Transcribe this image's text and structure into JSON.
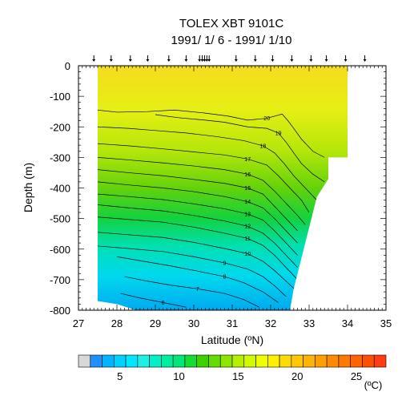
{
  "chart_data": {
    "type": "contour",
    "title": "TOLEX XBT 9101C",
    "subtitle": "1991/ 1/ 6 - 1991/ 1/10",
    "xlabel": "Latitude (ºN)",
    "ylabel": "Depth (m)",
    "xlim": [
      27,
      35
    ],
    "ylim": [
      -800,
      0
    ],
    "xticks": [
      "27",
      "28",
      "29",
      "30",
      "31",
      "32",
      "33",
      "34",
      "35"
    ],
    "yticks": [
      "0",
      "-100",
      "-200",
      "-300",
      "-400",
      "-500",
      "-600",
      "-700",
      "-800"
    ],
    "station_latitudes": [
      27.4,
      27.85,
      28.35,
      28.8,
      29.35,
      29.8,
      30.15,
      30.22,
      30.28,
      30.34,
      30.4,
      31.1,
      31.6,
      32.05,
      32.55,
      33.05,
      33.45,
      33.95,
      34.45
    ],
    "data_extent": {
      "lat_min": 27.5,
      "lat_max": 34.0,
      "bottom_depths": [
        {
          "lat": 27.5,
          "depth": -770
        },
        {
          "lat": 28.0,
          "depth": -780
        },
        {
          "lat": 28.5,
          "depth": -800
        },
        {
          "lat": 32.5,
          "depth": -800
        },
        {
          "lat": 32.6,
          "depth": -730
        },
        {
          "lat": 33.0,
          "depth": -530
        },
        {
          "lat": 33.2,
          "depth": -430
        },
        {
          "lat": 33.5,
          "depth": -370
        },
        {
          "lat": 33.5,
          "depth": -300
        },
        {
          "lat": 34.0,
          "depth": -300
        }
      ]
    },
    "contours": [
      {
        "level": 20,
        "label": "20",
        "points": [
          [
            27.5,
            -145
          ],
          [
            28.0,
            -152
          ],
          [
            28.8,
            -150
          ],
          [
            29.5,
            -145
          ],
          [
            30.3,
            -155
          ],
          [
            30.9,
            -165
          ],
          [
            31.4,
            -178
          ],
          [
            31.9,
            -172
          ],
          [
            32.3,
            -158
          ],
          [
            32.45,
            -180
          ],
          [
            32.6,
            -205
          ],
          [
            32.8,
            -240
          ],
          [
            33.1,
            -280
          ],
          [
            33.4,
            -300
          ]
        ]
      },
      {
        "level": 19,
        "label": "19",
        "points": [
          [
            29.0,
            -160
          ],
          [
            29.6,
            -170
          ],
          [
            30.3,
            -178
          ],
          [
            30.8,
            -185
          ],
          [
            31.4,
            -200
          ],
          [
            31.9,
            -205
          ],
          [
            32.2,
            -220
          ],
          [
            32.4,
            -250
          ],
          [
            32.6,
            -285
          ],
          [
            32.8,
            -320
          ],
          [
            33.1,
            -355
          ],
          [
            33.4,
            -380
          ]
        ]
      },
      {
        "level": 18,
        "label": "18",
        "points": [
          [
            27.5,
            -200
          ],
          [
            28.3,
            -205
          ],
          [
            29.0,
            -212
          ],
          [
            29.8,
            -220
          ],
          [
            30.6,
            -232
          ],
          [
            31.3,
            -245
          ],
          [
            31.8,
            -262
          ],
          [
            32.1,
            -285
          ],
          [
            32.35,
            -320
          ],
          [
            32.6,
            -360
          ],
          [
            32.9,
            -400
          ],
          [
            33.2,
            -440
          ]
        ]
      },
      {
        "level": 17,
        "label": "17",
        "points": [
          [
            27.5,
            -255
          ],
          [
            28.3,
            -262
          ],
          [
            29.2,
            -272
          ],
          [
            30.0,
            -282
          ],
          [
            30.8,
            -292
          ],
          [
            31.4,
            -305
          ],
          [
            31.9,
            -325
          ],
          [
            32.2,
            -360
          ],
          [
            32.5,
            -400
          ],
          [
            32.8,
            -440
          ],
          [
            33.0,
            -480
          ]
        ]
      },
      {
        "level": 16,
        "label": "16",
        "points": [
          [
            27.5,
            -300
          ],
          [
            28.3,
            -308
          ],
          [
            29.2,
            -318
          ],
          [
            30.0,
            -328
          ],
          [
            30.8,
            -340
          ],
          [
            31.4,
            -355
          ],
          [
            31.8,
            -375
          ],
          [
            32.1,
            -410
          ],
          [
            32.4,
            -450
          ],
          [
            32.7,
            -490
          ],
          [
            32.9,
            -520
          ]
        ]
      },
      {
        "level": 15,
        "label": "15",
        "points": [
          [
            27.5,
            -340
          ],
          [
            28.3,
            -350
          ],
          [
            29.2,
            -360
          ],
          [
            30.0,
            -372
          ],
          [
            30.8,
            -385
          ],
          [
            31.4,
            -400
          ],
          [
            31.8,
            -420
          ],
          [
            32.1,
            -460
          ],
          [
            32.4,
            -500
          ],
          [
            32.7,
            -540
          ]
        ]
      },
      {
        "level": 14,
        "label": "14",
        "points": [
          [
            27.5,
            -380
          ],
          [
            28.3,
            -390
          ],
          [
            29.2,
            -400
          ],
          [
            30.0,
            -412
          ],
          [
            30.8,
            -428
          ],
          [
            31.4,
            -445
          ],
          [
            31.8,
            -465
          ],
          [
            32.1,
            -500
          ],
          [
            32.4,
            -540
          ],
          [
            32.7,
            -580
          ]
        ]
      },
      {
        "level": 13,
        "label": "13",
        "points": [
          [
            27.5,
            -420
          ],
          [
            28.3,
            -428
          ],
          [
            29.2,
            -438
          ],
          [
            30.0,
            -452
          ],
          [
            30.8,
            -468
          ],
          [
            31.4,
            -485
          ],
          [
            31.8,
            -505
          ],
          [
            32.1,
            -540
          ],
          [
            32.4,
            -580
          ],
          [
            32.7,
            -620
          ]
        ]
      },
      {
        "level": 12,
        "label": "12",
        "points": [
          [
            27.5,
            -455
          ],
          [
            28.3,
            -465
          ],
          [
            29.2,
            -475
          ],
          [
            30.0,
            -490
          ],
          [
            30.8,
            -508
          ],
          [
            31.4,
            -525
          ],
          [
            31.8,
            -548
          ],
          [
            32.1,
            -580
          ],
          [
            32.4,
            -620
          ],
          [
            32.7,
            -660
          ]
        ]
      },
      {
        "level": 11,
        "label": "11",
        "points": [
          [
            27.5,
            -495
          ],
          [
            28.3,
            -503
          ],
          [
            29.2,
            -512
          ],
          [
            30.0,
            -528
          ],
          [
            30.8,
            -548
          ],
          [
            31.4,
            -565
          ],
          [
            31.8,
            -588
          ],
          [
            32.1,
            -620
          ],
          [
            32.4,
            -660
          ],
          [
            32.7,
            -700
          ]
        ]
      },
      {
        "level": 10,
        "label": "10",
        "points": [
          [
            27.5,
            -545
          ],
          [
            28.3,
            -553
          ],
          [
            29.2,
            -562
          ],
          [
            30.0,
            -578
          ],
          [
            30.8,
            -598
          ],
          [
            31.4,
            -615
          ],
          [
            31.8,
            -640
          ],
          [
            32.1,
            -670
          ],
          [
            32.4,
            -705
          ],
          [
            32.7,
            -740
          ]
        ]
      },
      {
        "level": 9,
        "label": "9",
        "points": [
          [
            27.5,
            -590
          ],
          [
            28.3,
            -598
          ],
          [
            29.2,
            -608
          ],
          [
            30.0,
            -625
          ],
          [
            30.8,
            -645
          ],
          [
            31.4,
            -665
          ],
          [
            31.8,
            -690
          ],
          [
            32.1,
            -720
          ],
          [
            32.4,
            -755
          ]
        ]
      },
      {
        "level": 8,
        "label": "8",
        "points": [
          [
            28.0,
            -625
          ],
          [
            28.7,
            -640
          ],
          [
            29.4,
            -655
          ],
          [
            30.1,
            -672
          ],
          [
            30.8,
            -690
          ],
          [
            31.3,
            -710
          ],
          [
            31.8,
            -740
          ],
          [
            32.2,
            -775
          ]
        ]
      },
      {
        "level": 7,
        "label": "7",
        "points": [
          [
            28.2,
            -690
          ],
          [
            28.8,
            -705
          ],
          [
            29.4,
            -718
          ],
          [
            30.1,
            -730
          ],
          [
            30.8,
            -745
          ],
          [
            31.3,
            -765
          ],
          [
            31.7,
            -790
          ]
        ]
      },
      {
        "level": 6,
        "label": "6",
        "points": [
          [
            28.1,
            -745
          ],
          [
            28.6,
            -760
          ],
          [
            29.2,
            -775
          ],
          [
            29.8,
            -790
          ]
        ]
      }
    ],
    "colorbar": {
      "unit": "(ºC)",
      "tick_labels": [
        "5",
        "10",
        "15",
        "20",
        "25"
      ],
      "colors": [
        "#1e90ff",
        "#00b4ff",
        "#00d2ff",
        "#00e8ff",
        "#1ef0e6",
        "#00f0c8",
        "#00eea0",
        "#00e678",
        "#14dc32",
        "#3cd200",
        "#64dc00",
        "#8ce600",
        "#b4f000",
        "#d2fa00",
        "#f0ff00",
        "#fff000",
        "#ffdc00",
        "#ffc800",
        "#ffb400",
        "#ffa000",
        "#ff8c00",
        "#ff7800",
        "#ff6400",
        "#ff5000",
        "#ff3c14"
      ]
    }
  }
}
